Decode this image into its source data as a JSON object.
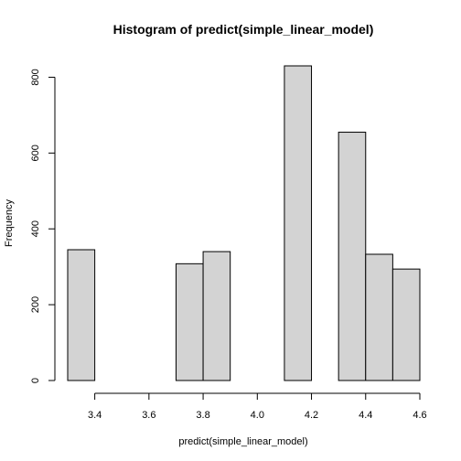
{
  "chart_data": {
    "type": "bar",
    "title": "Histogram of predict(simple_linear_model)",
    "xlabel": "predict(simple_linear_model)",
    "ylabel": "Frequency",
    "xlim": [
      3.3,
      4.6
    ],
    "ylim": [
      0,
      830
    ],
    "x_ticks": [
      3.4,
      3.6,
      3.8,
      4.0,
      4.2,
      4.4,
      4.6
    ],
    "x_tick_labels": [
      "3.4",
      "3.6",
      "3.8",
      "4.0",
      "4.2",
      "4.4",
      "4.6"
    ],
    "y_ticks": [
      0,
      200,
      400,
      600,
      800
    ],
    "y_tick_labels": [
      "0",
      "200",
      "400",
      "600",
      "800"
    ],
    "bin_edges": [
      3.3,
      3.4,
      3.5,
      3.6,
      3.7,
      3.8,
      3.9,
      4.0,
      4.1,
      4.2,
      4.3,
      4.4,
      4.5,
      4.6
    ],
    "values": [
      345,
      0,
      0,
      0,
      308,
      340,
      0,
      0,
      830,
      0,
      655,
      333,
      294
    ],
    "bar_fill": "#d3d3d3",
    "bar_stroke": "#000000",
    "grid": false,
    "legend": "none"
  }
}
